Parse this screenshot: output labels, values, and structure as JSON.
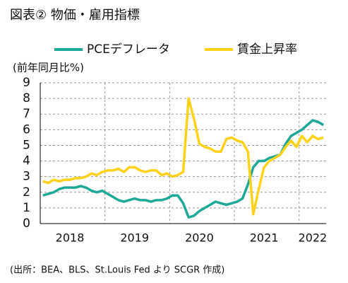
{
  "chart_data": {
    "type": "line",
    "title": "図表② 物価・雇用指標",
    "y_label": "(前年同月比%)",
    "source": "(出所：BEA、BLS、St.Louis Fed より SCGR 作成)",
    "categories": [
      null,
      null,
      null,
      null,
      null,
      "2018",
      null,
      null,
      null,
      null,
      null,
      null,
      null,
      null,
      null,
      null,
      null,
      "2019",
      null,
      null,
      null,
      null,
      null,
      null,
      null,
      null,
      null,
      null,
      null,
      "2020",
      null,
      null,
      null,
      null,
      null,
      null,
      null,
      null,
      null,
      null,
      null,
      "2021",
      null,
      null,
      null,
      null,
      null,
      null,
      null,
      null,
      "2022",
      null,
      null
    ],
    "series": [
      {
        "name": "PCEデフレータ",
        "color": "#1ea898",
        "values": [
          1.8,
          1.9,
          2.0,
          2.2,
          2.3,
          2.3,
          2.3,
          2.4,
          2.3,
          2.1,
          2.0,
          2.1,
          1.9,
          1.7,
          1.5,
          1.4,
          1.5,
          1.6,
          1.5,
          1.5,
          1.4,
          1.5,
          1.5,
          1.6,
          1.8,
          1.8,
          1.3,
          0.4,
          0.5,
          0.8,
          1.0,
          1.2,
          1.4,
          1.3,
          1.2,
          1.3,
          1.4,
          1.6,
          2.5,
          3.6,
          4.0,
          4.0,
          4.2,
          4.3,
          4.4,
          5.1,
          5.6,
          5.8,
          6.0,
          6.3,
          6.6,
          6.5,
          6.3
        ]
      },
      {
        "name": "賃金上昇率",
        "color": "#ffd21a",
        "values": [
          2.7,
          2.6,
          2.8,
          2.7,
          2.8,
          2.8,
          2.9,
          2.9,
          3.0,
          3.2,
          3.1,
          3.3,
          3.4,
          3.4,
          3.5,
          3.3,
          3.6,
          3.6,
          3.4,
          3.3,
          3.4,
          3.4,
          3.1,
          3.2,
          3.0,
          3.1,
          3.3,
          8.0,
          6.7,
          5.1,
          4.9,
          4.8,
          4.6,
          4.6,
          5.4,
          5.5,
          5.3,
          5.2,
          4.6,
          0.6,
          2.2,
          3.6,
          4.0,
          4.2,
          4.4,
          4.9,
          5.3,
          4.9,
          5.6,
          5.2,
          5.6,
          5.4,
          5.5
        ]
      }
    ],
    "ylim": [
      0,
      9
    ],
    "yticks": [
      0,
      1,
      2,
      3,
      4,
      5,
      6,
      7,
      8,
      9
    ],
    "grid": true
  }
}
